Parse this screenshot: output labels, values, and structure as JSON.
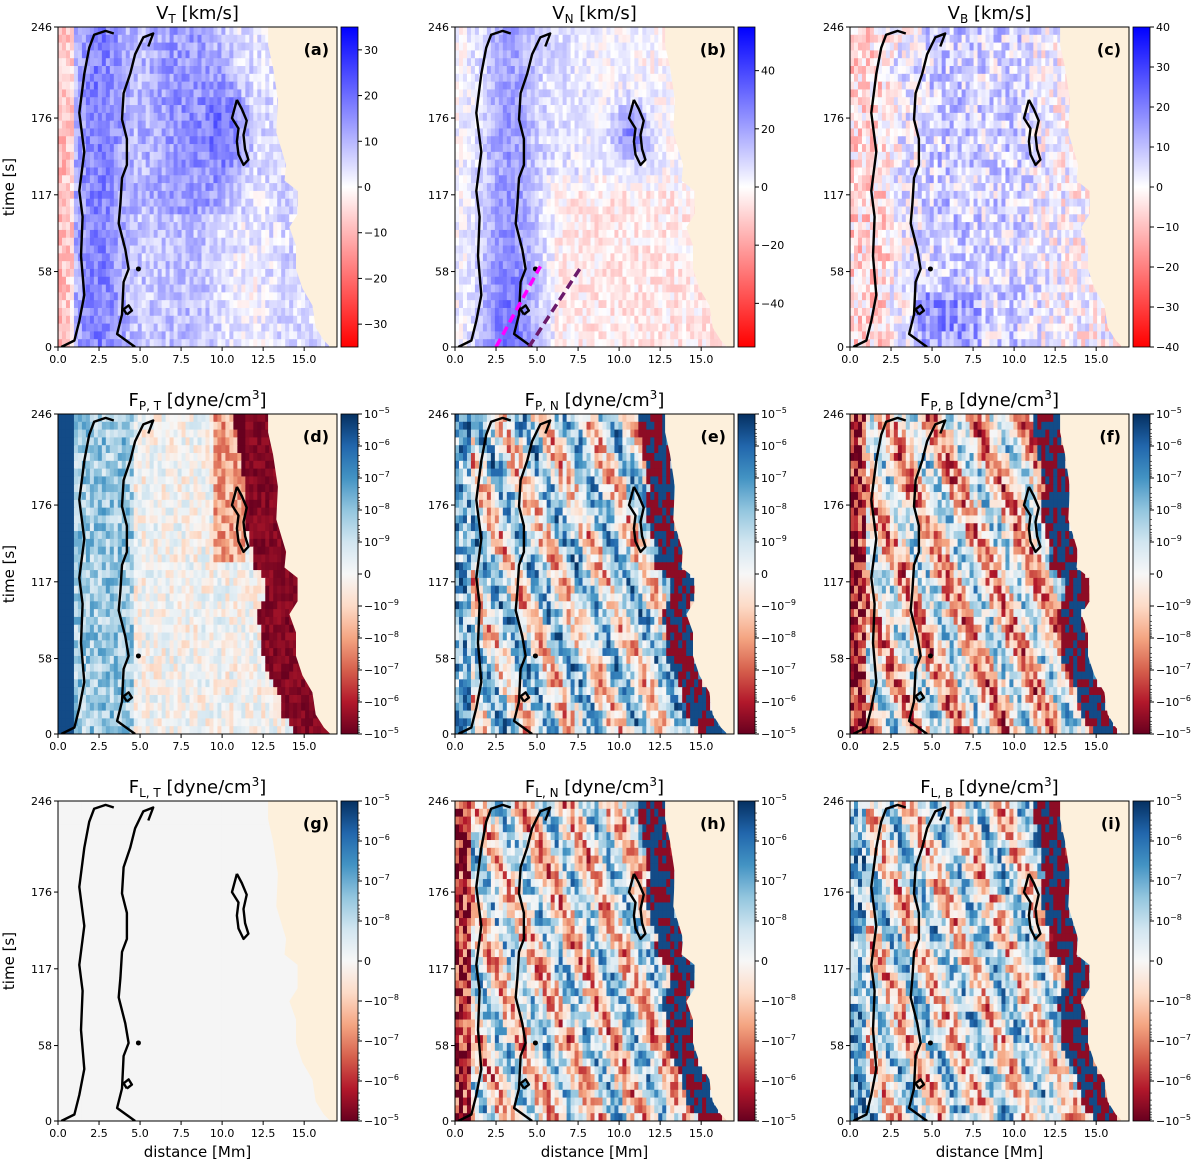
{
  "chart_data": {
    "type": "heatmap",
    "shared": {
      "x_range": [
        0,
        17
      ],
      "y_range": [
        0,
        246
      ],
      "x_ticks": [
        0.0,
        2.5,
        5.0,
        7.5,
        10.0,
        12.5,
        15.0
      ],
      "y_ticks": [
        0,
        58,
        117,
        176,
        246
      ],
      "xlabel": "distance [Mm]",
      "ylabel": "time [s]",
      "masked_region_color": "#fdf0dc",
      "contour_color": "#000000"
    },
    "panels": [
      {
        "id": "a",
        "label": "(a)",
        "title_main": "V",
        "title_sub": "T",
        "title_unit": " [km/s]",
        "cmap": "bwr",
        "cbar_ticks": [
          {
            "v": 30,
            "t": "30"
          },
          {
            "v": 20,
            "t": "20"
          },
          {
            "v": 10,
            "t": "10"
          },
          {
            "v": 0,
            "t": "0"
          },
          {
            "v": -10,
            "t": "−10"
          },
          {
            "v": -20,
            "t": "−20"
          },
          {
            "v": -30,
            "t": "−30"
          }
        ],
        "cbar_range": [
          -35,
          35
        ]
      },
      {
        "id": "b",
        "label": "(b)",
        "title_main": "V",
        "title_sub": "N",
        "title_unit": " [km/s]",
        "cmap": "bwr",
        "cbar_ticks": [
          {
            "v": 40,
            "t": "40"
          },
          {
            "v": 20,
            "t": "20"
          },
          {
            "v": 0,
            "t": "0"
          },
          {
            "v": -20,
            "t": "−20"
          },
          {
            "v": -40,
            "t": "−40"
          }
        ],
        "cbar_range": [
          -55,
          55
        ],
        "overlay_lines": [
          {
            "color": "#ff00ff",
            "x": [
              2.5,
              5.2
            ],
            "y": [
              0,
              62
            ]
          },
          {
            "color": "#6b1a6b",
            "x": [
              4.5,
              7.6
            ],
            "y": [
              0,
              60
            ]
          }
        ]
      },
      {
        "id": "c",
        "label": "(c)",
        "title_main": "V",
        "title_sub": "B",
        "title_unit": " [km/s]",
        "cmap": "bwr",
        "cbar_ticks": [
          {
            "v": 40,
            "t": "40"
          },
          {
            "v": 30,
            "t": "30"
          },
          {
            "v": 20,
            "t": "20"
          },
          {
            "v": 10,
            "t": "10"
          },
          {
            "v": 0,
            "t": "0"
          },
          {
            "v": -10,
            "t": "−10"
          },
          {
            "v": -20,
            "t": "−20"
          },
          {
            "v": -30,
            "t": "−30"
          },
          {
            "v": -40,
            "t": "−40"
          }
        ],
        "cbar_range": [
          -40,
          40
        ]
      },
      {
        "id": "d",
        "label": "(d)",
        "title_main": "F",
        "title_sub": "P, T",
        "title_unit": " [dyne/cm",
        "title_sup": "3",
        "title_end": "]",
        "cmap": "rdbu",
        "cbar_scale": "symlog",
        "cbar_ticks": [
          {
            "b": "10",
            "e": "−5"
          },
          {
            "b": "10",
            "e": "−6"
          },
          {
            "b": "10",
            "e": "−7"
          },
          {
            "b": "10",
            "e": "−8"
          },
          {
            "b": "10",
            "e": "−9"
          },
          {
            "b": "0",
            "e": ""
          },
          {
            "b": "−10",
            "e": "−9"
          },
          {
            "b": "−10",
            "e": "−8"
          },
          {
            "b": "−10",
            "e": "−7"
          },
          {
            "b": "−10",
            "e": "−6"
          },
          {
            "b": "−10",
            "e": "−5"
          }
        ]
      },
      {
        "id": "e",
        "label": "(e)",
        "title_main": "F",
        "title_sub": "P, N",
        "title_unit": " [dyne/cm",
        "title_sup": "3",
        "title_end": "]",
        "cmap": "rdbu",
        "cbar_scale": "symlog",
        "cbar_ticks": [
          {
            "b": "10",
            "e": "−5"
          },
          {
            "b": "10",
            "e": "−6"
          },
          {
            "b": "10",
            "e": "−7"
          },
          {
            "b": "10",
            "e": "−8"
          },
          {
            "b": "10",
            "e": "−9"
          },
          {
            "b": "0",
            "e": ""
          },
          {
            "b": "−10",
            "e": "−9"
          },
          {
            "b": "−10",
            "e": "−8"
          },
          {
            "b": "−10",
            "e": "−7"
          },
          {
            "b": "−10",
            "e": "−6"
          },
          {
            "b": "−10",
            "e": "−5"
          }
        ]
      },
      {
        "id": "f",
        "label": "(f)",
        "title_main": "F",
        "title_sub": "P, B",
        "title_unit": " [dyne/cm",
        "title_sup": "3",
        "title_end": "]",
        "cmap": "rdbu",
        "cbar_scale": "symlog",
        "cbar_ticks": [
          {
            "b": "10",
            "e": "−5"
          },
          {
            "b": "10",
            "e": "−6"
          },
          {
            "b": "10",
            "e": "−7"
          },
          {
            "b": "10",
            "e": "−8"
          },
          {
            "b": "10",
            "e": "−9"
          },
          {
            "b": "0",
            "e": ""
          },
          {
            "b": "−10",
            "e": "−9"
          },
          {
            "b": "−10",
            "e": "−8"
          },
          {
            "b": "−10",
            "e": "−7"
          },
          {
            "b": "−10",
            "e": "−6"
          },
          {
            "b": "−10",
            "e": "−5"
          }
        ]
      },
      {
        "id": "g",
        "label": "(g)",
        "title_main": "F",
        "title_sub": "L, T",
        "title_unit": " [dyne/cm",
        "title_sup": "3",
        "title_end": "]",
        "cmap": "rdbu",
        "cbar_scale": "symlog",
        "uniform": true,
        "cbar_ticks": [
          {
            "b": "10",
            "e": "−5"
          },
          {
            "b": "10",
            "e": "−6"
          },
          {
            "b": "10",
            "e": "−7"
          },
          {
            "b": "10",
            "e": "−8"
          },
          {
            "b": "0",
            "e": ""
          },
          {
            "b": "−10",
            "e": "−8"
          },
          {
            "b": "−10",
            "e": "−7"
          },
          {
            "b": "−10",
            "e": "−6"
          },
          {
            "b": "−10",
            "e": "−5"
          }
        ]
      },
      {
        "id": "h",
        "label": "(h)",
        "title_main": "F",
        "title_sub": "L, N",
        "title_unit": " [dyne/cm",
        "title_sup": "3",
        "title_end": "]",
        "cmap": "rdbu",
        "cbar_scale": "symlog",
        "cbar_ticks": [
          {
            "b": "10",
            "e": "−5"
          },
          {
            "b": "10",
            "e": "−6"
          },
          {
            "b": "10",
            "e": "−7"
          },
          {
            "b": "10",
            "e": "−8"
          },
          {
            "b": "0",
            "e": ""
          },
          {
            "b": "−10",
            "e": "−8"
          },
          {
            "b": "−10",
            "e": "−7"
          },
          {
            "b": "−10",
            "e": "−6"
          },
          {
            "b": "−10",
            "e": "−5"
          }
        ]
      },
      {
        "id": "i",
        "label": "(i)",
        "title_main": "F",
        "title_sub": "L, B",
        "title_unit": " [dyne/cm",
        "title_sup": "3",
        "title_end": "]",
        "cmap": "rdbu",
        "cbar_scale": "symlog",
        "cbar_ticks": [
          {
            "b": "10",
            "e": "−5"
          },
          {
            "b": "10",
            "e": "−6"
          },
          {
            "b": "10",
            "e": "−7"
          },
          {
            "b": "10",
            "e": "−8"
          },
          {
            "b": "0",
            "e": ""
          },
          {
            "b": "−10",
            "e": "−8"
          },
          {
            "b": "−10",
            "e": "−7"
          },
          {
            "b": "−10",
            "e": "−6"
          },
          {
            "b": "−10",
            "e": "−5"
          }
        ]
      }
    ],
    "contours": {
      "left": [
        [
          0.2,
          0
        ],
        [
          1.0,
          5
        ],
        [
          1.3,
          20
        ],
        [
          1.6,
          40
        ],
        [
          1.4,
          70
        ],
        [
          1.5,
          100
        ],
        [
          1.3,
          120
        ],
        [
          1.6,
          150
        ],
        [
          1.3,
          180
        ],
        [
          1.6,
          210
        ],
        [
          1.9,
          230
        ],
        [
          2.2,
          240
        ],
        [
          2.9,
          243
        ],
        [
          3.4,
          241
        ]
      ],
      "middle": [
        [
          4.7,
          0
        ],
        [
          3.6,
          10
        ],
        [
          3.9,
          25
        ],
        [
          4.0,
          50
        ],
        [
          4.3,
          60
        ],
        [
          4.1,
          75
        ],
        [
          3.7,
          95
        ],
        [
          3.8,
          110
        ],
        [
          3.9,
          130
        ],
        [
          4.2,
          140
        ],
        [
          4.2,
          160
        ],
        [
          3.9,
          175
        ],
        [
          4.0,
          195
        ],
        [
          4.4,
          210
        ],
        [
          4.7,
          225
        ],
        [
          5.2,
          238
        ],
        [
          5.8,
          241
        ],
        [
          5.5,
          231
        ]
      ],
      "island": [
        [
          10.9,
          190
        ],
        [
          11.2,
          183
        ],
        [
          11.5,
          174
        ],
        [
          11.3,
          163
        ],
        [
          11.4,
          152
        ],
        [
          11.6,
          144
        ],
        [
          11.3,
          140
        ],
        [
          11.0,
          148
        ],
        [
          10.9,
          158
        ],
        [
          11.0,
          168
        ],
        [
          10.6,
          176
        ],
        [
          10.9,
          190
        ]
      ],
      "small": [
        [
          4.2,
          25
        ],
        [
          4.5,
          28
        ],
        [
          4.3,
          32
        ],
        [
          4.0,
          29
        ],
        [
          4.2,
          25
        ]
      ]
    },
    "mask_edge": [
      [
        12.8,
        246
      ],
      [
        12.8,
        232
      ],
      [
        13.1,
        215
      ],
      [
        13.4,
        190
      ],
      [
        13.3,
        165
      ],
      [
        13.9,
        140
      ],
      [
        13.8,
        128
      ],
      [
        14.6,
        120
      ],
      [
        14.6,
        102
      ],
      [
        14.1,
        92
      ],
      [
        14.5,
        78
      ],
      [
        14.5,
        60
      ],
      [
        14.9,
        45
      ],
      [
        15.5,
        32
      ],
      [
        15.7,
        15
      ],
      [
        16.2,
        5
      ],
      [
        16.6,
        0
      ]
    ]
  }
}
